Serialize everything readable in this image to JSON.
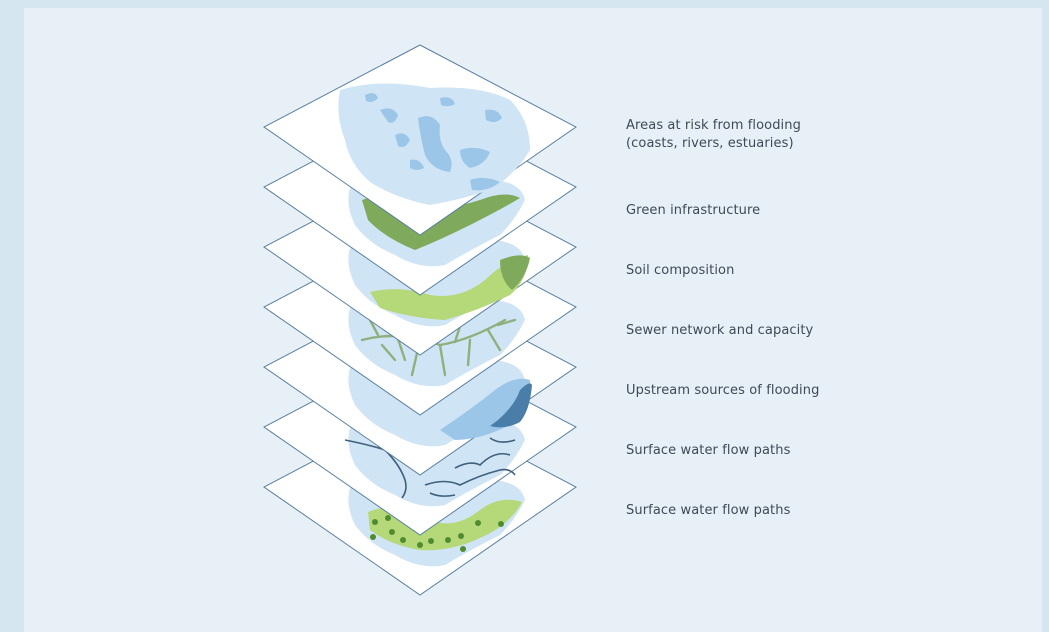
{
  "layers": [
    {
      "id": "flood-risk",
      "label_lines": [
        "Areas at risk from flooding",
        "(coasts, rivers, estuaries)"
      ]
    },
    {
      "id": "green-infrastructure",
      "label_lines": [
        "Green infrastructure"
      ]
    },
    {
      "id": "soil-composition",
      "label_lines": [
        "Soil composition"
      ]
    },
    {
      "id": "sewer-network",
      "label_lines": [
        "Sewer network and capacity"
      ]
    },
    {
      "id": "upstream-sources",
      "label_lines": [
        "Upstream sources of flooding"
      ]
    },
    {
      "id": "surface-water",
      "label_lines": [
        "Surface water flow paths"
      ]
    },
    {
      "id": "surface-water-2",
      "label_lines": [
        "Surface water flow paths"
      ]
    }
  ],
  "colors": {
    "background": "#d6e6f1",
    "panel": "#e7f0f7",
    "layer_fill": "#ffffff",
    "layer_stroke": "#5a7fa0",
    "region_light_blue": "#cfe4f5",
    "water_blue": "#9cc6e8",
    "green_dark": "#7faa5c",
    "green_light": "#b5d879",
    "sewer_green": "#8fb07d",
    "deep_blue": "#4a7ea8",
    "stream_navy": "#3f5f7c",
    "dot_green": "#4f8c2f"
  }
}
